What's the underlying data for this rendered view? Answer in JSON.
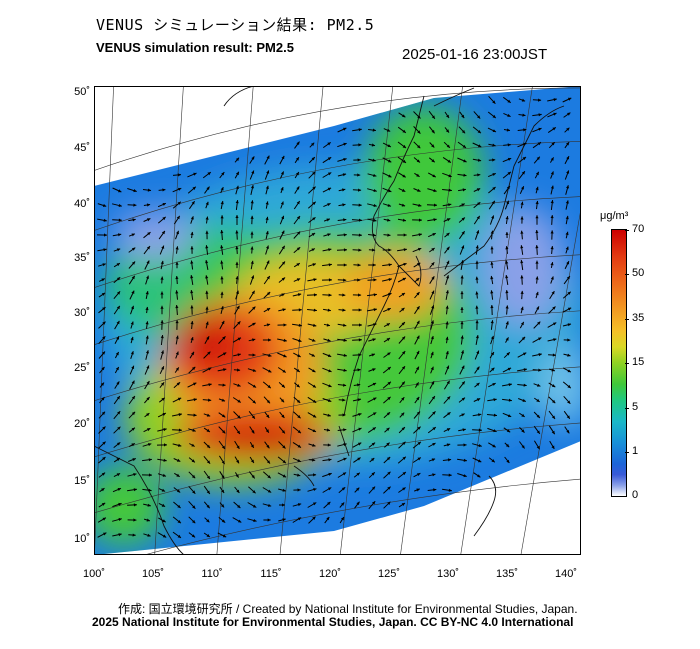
{
  "title": {
    "japanese": "VENUS シミュレーション結果: PM2.5",
    "english": "VENUS simulation result: PM2.5",
    "timestamp": "2025-01-16 23:00JST"
  },
  "map": {
    "lat_labels": [
      "50˚",
      "45˚",
      "40˚",
      "35˚",
      "30˚",
      "25˚",
      "20˚",
      "15˚",
      "10˚"
    ],
    "lon_labels": [
      "100˚",
      "105˚",
      "110˚",
      "115˚",
      "120˚",
      "125˚",
      "130˚",
      "135˚",
      "140˚"
    ],
    "lon_range": [
      100,
      141.5
    ],
    "lat_range": [
      9,
      50.5
    ]
  },
  "colorbar": {
    "unit": "μg/m³",
    "labels": [
      "70",
      "50",
      "35",
      "15",
      "5",
      "1",
      "0"
    ],
    "colors": [
      "#cc0000",
      "#f29a22",
      "#d9d825",
      "#3fc83a",
      "#1ab8c8",
      "#1c64d8",
      "#ffffff"
    ]
  },
  "credits": {
    "line1": "作成: 国立環境研究所 / Created by National Institute for Environmental Studies, Japan.",
    "line2": "2025 National Institute for Environmental Studies, Japan. CC BY-NC 4.0 International"
  }
}
